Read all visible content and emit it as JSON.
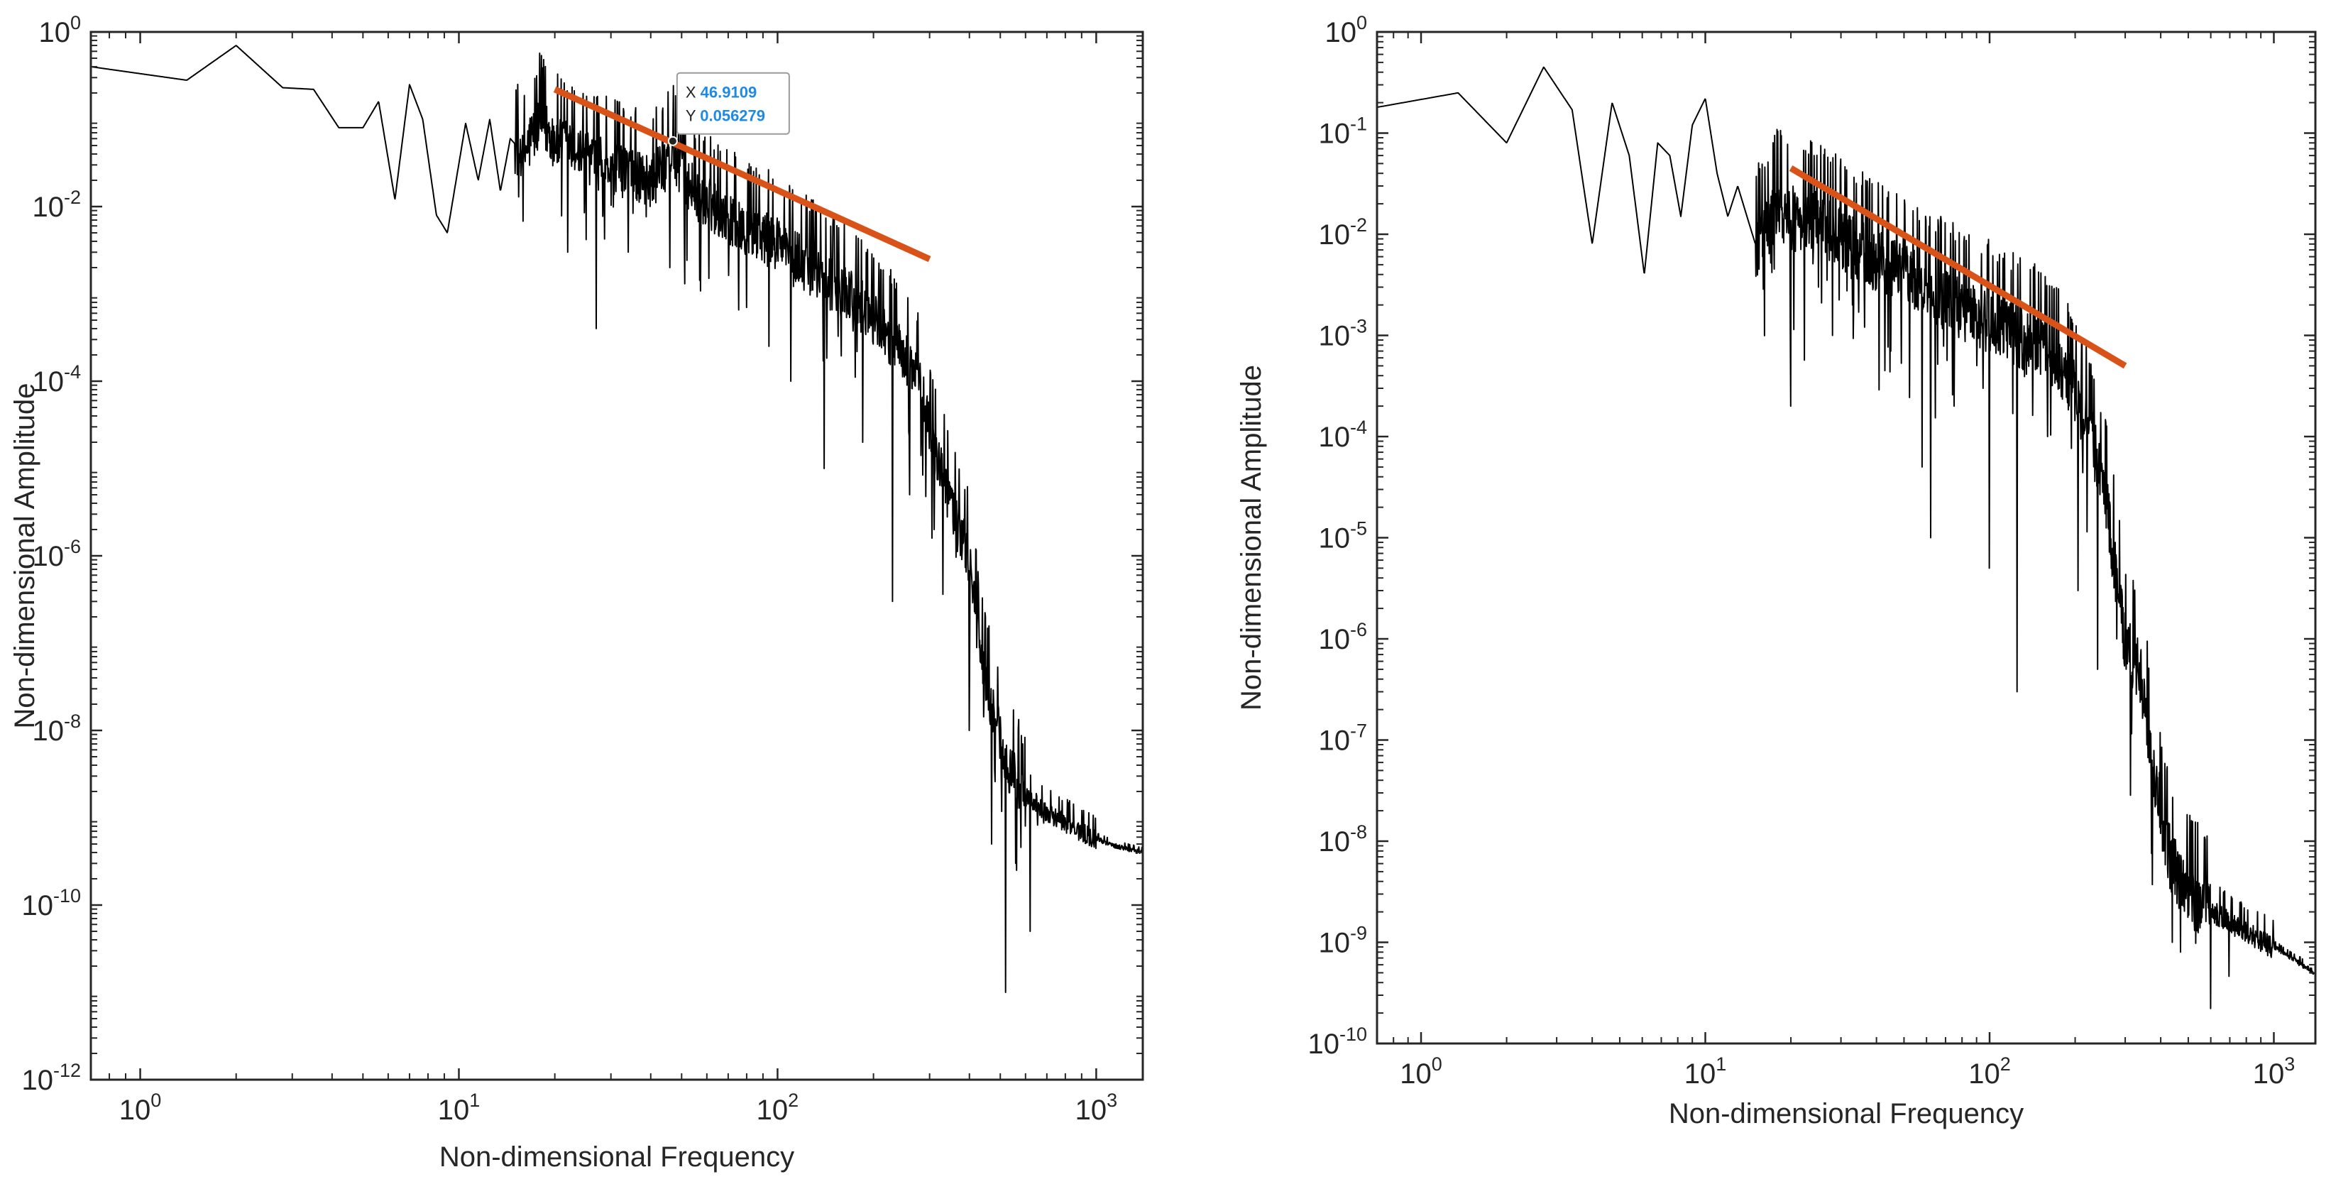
{
  "colors": {
    "spectrum": "#000000",
    "fit_line": "#d95319",
    "axis": "#262626",
    "datatip_value": "#1e8ae6"
  },
  "chart_data": [
    {
      "type": "line",
      "xscale": "log",
      "yscale": "log",
      "xlim": [
        0.7,
        1400
      ],
      "ylim": [
        1e-12,
        1
      ],
      "xlabel": "Non-dimensional Frequency",
      "ylabel": "Non-dimensional Amplitude",
      "xticks": [
        {
          "base": "10",
          "exp": "0",
          "value": 1
        },
        {
          "base": "10",
          "exp": "1",
          "value": 10
        },
        {
          "base": "10",
          "exp": "2",
          "value": 100
        },
        {
          "base": "10",
          "exp": "3",
          "value": 1000
        }
      ],
      "yticks": [
        {
          "base": "10",
          "exp": "0",
          "value": 1
        },
        {
          "base": "10",
          "exp": "-2",
          "value": 0.01
        },
        {
          "base": "10",
          "exp": "-4",
          "value": 0.0001
        },
        {
          "base": "10",
          "exp": "-6",
          "value": 1e-06
        },
        {
          "base": "10",
          "exp": "-8",
          "value": 1e-08
        },
        {
          "base": "10",
          "exp": "-10",
          "value": 1e-10
        },
        {
          "base": "10",
          "exp": "-12",
          "value": 1e-12
        }
      ],
      "series": [
        {
          "name": "spectrum",
          "anchors": [
            [
              0.7,
              0.4
            ],
            [
              1.4,
              0.28
            ],
            [
              2.0,
              0.7
            ],
            [
              2.8,
              0.23
            ],
            [
              3.5,
              0.22
            ],
            [
              4.2,
              0.08
            ],
            [
              5.0,
              0.08
            ],
            [
              5.6,
              0.16
            ],
            [
              6.3,
              0.012
            ],
            [
              7.0,
              0.25
            ],
            [
              7.7,
              0.1
            ],
            [
              8.5,
              0.008
            ],
            [
              9.2,
              0.005
            ],
            [
              10.5,
              0.09
            ],
            [
              11.5,
              0.02
            ],
            [
              12.5,
              0.1
            ],
            [
              13.5,
              0.015
            ],
            [
              14.5,
              0.06
            ],
            [
              16,
              0.04
            ],
            [
              18,
              0.1
            ],
            [
              20,
              0.06
            ],
            [
              25,
              0.04
            ],
            [
              30,
              0.03
            ],
            [
              35,
              0.025
            ],
            [
              40,
              0.02
            ],
            [
              46.9,
              0.045
            ],
            [
              55,
              0.015
            ],
            [
              65,
              0.01
            ],
            [
              80,
              0.006
            ],
            [
              100,
              0.004
            ],
            [
              130,
              0.002
            ],
            [
              170,
              0.001
            ],
            [
              210,
              0.0005
            ],
            [
              250,
              0.0002
            ],
            [
              280,
              0.0001
            ],
            [
              300,
              3e-05
            ],
            [
              330,
              8e-06
            ],
            [
              360,
              3e-06
            ],
            [
              400,
              1e-06
            ],
            [
              430,
              1e-07
            ],
            [
              470,
              2e-08
            ],
            [
              520,
              5e-09
            ],
            [
              600,
              1.8e-09
            ],
            [
              700,
              1.2e-09
            ],
            [
              900,
              7e-10
            ],
            [
              1100,
              5e-10
            ],
            [
              1400,
              4e-10
            ]
          ],
          "dips": [
            [
              22,
              0.003
            ],
            [
              27,
              0.0004
            ],
            [
              34,
              0.003
            ],
            [
              46,
              0.002
            ],
            [
              80,
              0.0007
            ],
            [
              110,
              0.0001
            ],
            [
              140,
              1e-05
            ],
            [
              185,
              2e-05
            ],
            [
              230,
              3e-07
            ],
            [
              260,
              5e-06
            ],
            [
              310,
              2e-06
            ],
            [
              400,
              1e-08
            ],
            [
              470,
              5e-10
            ],
            [
              520,
              1e-11
            ],
            [
              560,
              3e-10
            ],
            [
              620,
              5e-11
            ]
          ]
        },
        {
          "name": "fit",
          "points": [
            [
              20,
              0.22
            ],
            [
              300,
              0.0025
            ]
          ]
        }
      ],
      "datatip": {
        "x_key": "X",
        "y_key": "Y",
        "x_value": "46.9109",
        "y_value": "0.056279"
      }
    },
    {
      "type": "line",
      "xscale": "log",
      "yscale": "log",
      "xlim": [
        0.7,
        1400
      ],
      "ylim": [
        1e-10,
        1
      ],
      "xlabel": "Non-dimensional Frequency",
      "ylabel": "Non-dimensional Amplitude",
      "xticks": [
        {
          "base": "10",
          "exp": "0",
          "value": 1
        },
        {
          "base": "10",
          "exp": "1",
          "value": 10
        },
        {
          "base": "10",
          "exp": "2",
          "value": 100
        },
        {
          "base": "10",
          "exp": "3",
          "value": 1000
        }
      ],
      "yticks": [
        {
          "base": "10",
          "exp": "0",
          "value": 1
        },
        {
          "base": "10",
          "exp": "-1",
          "value": 0.1
        },
        {
          "base": "10",
          "exp": "-2",
          "value": 0.01
        },
        {
          "base": "10",
          "exp": "-3",
          "value": 0.001
        },
        {
          "base": "10",
          "exp": "-4",
          "value": 0.0001
        },
        {
          "base": "10",
          "exp": "-5",
          "value": 1e-05
        },
        {
          "base": "10",
          "exp": "-6",
          "value": 1e-06
        },
        {
          "base": "10",
          "exp": "-7",
          "value": 1e-07
        },
        {
          "base": "10",
          "exp": "-8",
          "value": 1e-08
        },
        {
          "base": "10",
          "exp": "-9",
          "value": 1e-09
        },
        {
          "base": "10",
          "exp": "-10",
          "value": 1e-10
        }
      ],
      "series": [
        {
          "name": "spectrum",
          "anchors": [
            [
              0.7,
              0.18
            ],
            [
              1.35,
              0.25
            ],
            [
              2.0,
              0.08
            ],
            [
              2.7,
              0.45
            ],
            [
              3.4,
              0.17
            ],
            [
              4.0,
              0.008
            ],
            [
              4.7,
              0.2
            ],
            [
              5.4,
              0.06
            ],
            [
              6.1,
              0.004
            ],
            [
              6.8,
              0.08
            ],
            [
              7.5,
              0.06
            ],
            [
              8.2,
              0.015
            ],
            [
              9.0,
              0.12
            ],
            [
              10.0,
              0.22
            ],
            [
              11,
              0.04
            ],
            [
              12,
              0.015
            ],
            [
              13,
              0.03
            ],
            [
              15,
              0.008
            ],
            [
              18,
              0.02
            ],
            [
              20,
              0.015
            ],
            [
              25,
              0.015
            ],
            [
              30,
              0.01
            ],
            [
              40,
              0.006
            ],
            [
              50,
              0.005
            ],
            [
              60,
              0.003
            ],
            [
              80,
              0.002
            ],
            [
              100,
              0.0015
            ],
            [
              130,
              0.001
            ],
            [
              160,
              0.0008
            ],
            [
              200,
              0.0003
            ],
            [
              230,
              0.0001
            ],
            [
              260,
              2e-05
            ],
            [
              300,
              1e-06
            ],
            [
              340,
              5e-07
            ],
            [
              380,
              5e-08
            ],
            [
              420,
              1e-08
            ],
            [
              460,
              5e-09
            ],
            [
              520,
              3e-09
            ],
            [
              620,
              2e-09
            ],
            [
              800,
              1.3e-09
            ],
            [
              1000,
              9e-10
            ],
            [
              1400,
              5e-10
            ]
          ],
          "dips": [
            [
              20,
              0.0002
            ],
            [
              25,
              0.003
            ],
            [
              28,
              0.001
            ],
            [
              33,
              0.002
            ],
            [
              45,
              0.0007
            ],
            [
              58,
              5e-05
            ],
            [
              62,
              1e-05
            ],
            [
              75,
              0.0002
            ],
            [
              95,
              0.0003
            ],
            [
              100,
              5e-06
            ],
            [
              125,
              3e-07
            ],
            [
              160,
              0.0001
            ],
            [
              205,
              3e-06
            ],
            [
              240,
              5e-07
            ],
            [
              280,
              1e-06
            ],
            [
              410,
              8e-09
            ],
            [
              440,
              1e-09
            ],
            [
              470,
              8e-10
            ]
          ]
        },
        {
          "name": "fit",
          "points": [
            [
              20,
              0.045
            ],
            [
              300,
              0.0005
            ]
          ]
        }
      ]
    }
  ]
}
